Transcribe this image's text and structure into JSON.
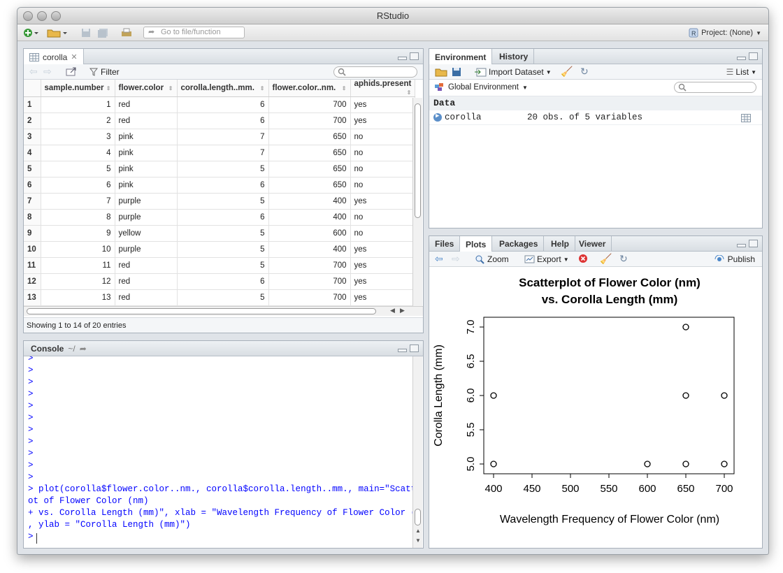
{
  "window": {
    "title": "RStudio"
  },
  "toolbar": {
    "goto_placeholder": "Go to file/function",
    "project_label": "Project: (None)"
  },
  "data_viewer": {
    "tab_label": "corolla",
    "filter_label": "Filter",
    "columns": [
      "sample.number",
      "flower.color",
      "corolla.length..mm.",
      "flower.color..nm.",
      "aphids.present"
    ],
    "rows": [
      [
        "1",
        "1",
        "red",
        "6",
        "700",
        "yes"
      ],
      [
        "2",
        "2",
        "red",
        "6",
        "700",
        "yes"
      ],
      [
        "3",
        "3",
        "pink",
        "7",
        "650",
        "no"
      ],
      [
        "4",
        "4",
        "pink",
        "7",
        "650",
        "no"
      ],
      [
        "5",
        "5",
        "pink",
        "5",
        "650",
        "no"
      ],
      [
        "6",
        "6",
        "pink",
        "6",
        "650",
        "no"
      ],
      [
        "7",
        "7",
        "purple",
        "5",
        "400",
        "yes"
      ],
      [
        "8",
        "8",
        "purple",
        "6",
        "400",
        "no"
      ],
      [
        "9",
        "9",
        "yellow",
        "5",
        "600",
        "no"
      ],
      [
        "10",
        "10",
        "purple",
        "5",
        "400",
        "yes"
      ],
      [
        "11",
        "11",
        "red",
        "5",
        "700",
        "yes"
      ],
      [
        "12",
        "12",
        "red",
        "6",
        "700",
        "yes"
      ],
      [
        "13",
        "13",
        "red",
        "5",
        "700",
        "yes"
      ]
    ],
    "status": "Showing 1 to 14 of 20 entries"
  },
  "console": {
    "title": "Console",
    "path": "~/",
    "lines": [
      ">",
      ">",
      ">",
      ">",
      ">",
      ">",
      ">",
      ">",
      ">",
      ">",
      ">",
      "> plot(corolla$flower.color..nm., corolla$corolla.length..mm., main=\"Scatterpl",
      "ot of Flower Color (nm)",
      "+ vs. Corolla Length (mm)\", xlab = \"Wavelength Frequency of Flower Color (nm)\"",
      ", ylab = \"Corolla Length (mm)\")",
      ">"
    ]
  },
  "environment": {
    "tabs": [
      "Environment",
      "History"
    ],
    "import_label": "Import Dataset",
    "list_label": "List",
    "scope_label": "Global Environment",
    "section": "Data",
    "object_name": "corolla",
    "object_desc": "20 obs. of 5 variables"
  },
  "files_pane": {
    "tabs": [
      "Files",
      "Plots",
      "Packages",
      "Help",
      "Viewer"
    ],
    "zoom_label": "Zoom",
    "export_label": "Export",
    "publish_label": "Publish"
  },
  "chart_data": {
    "type": "scatter",
    "title": "Scatterplot of Flower Color (nm)\nvs. Corolla Length (mm)",
    "title_lines": [
      "Scatterplot of Flower Color (nm)",
      "vs. Corolla Length (mm)"
    ],
    "xlabel": "Wavelength Frequency of Flower Color (nm)",
    "ylabel": "Corolla Length (mm)",
    "xlim": [
      400,
      700
    ],
    "ylim": [
      5.0,
      7.0
    ],
    "xticks": [
      400,
      450,
      500,
      550,
      600,
      650,
      700
    ],
    "yticks": [
      "5.0",
      "5.5",
      "6.0",
      "6.5",
      "7.0"
    ],
    "points": [
      {
        "x": 400,
        "y": 6
      },
      {
        "x": 400,
        "y": 5
      },
      {
        "x": 600,
        "y": 5
      },
      {
        "x": 650,
        "y": 7
      },
      {
        "x": 650,
        "y": 6
      },
      {
        "x": 650,
        "y": 5
      },
      {
        "x": 700,
        "y": 6
      },
      {
        "x": 700,
        "y": 5
      }
    ],
    "grid": false
  }
}
